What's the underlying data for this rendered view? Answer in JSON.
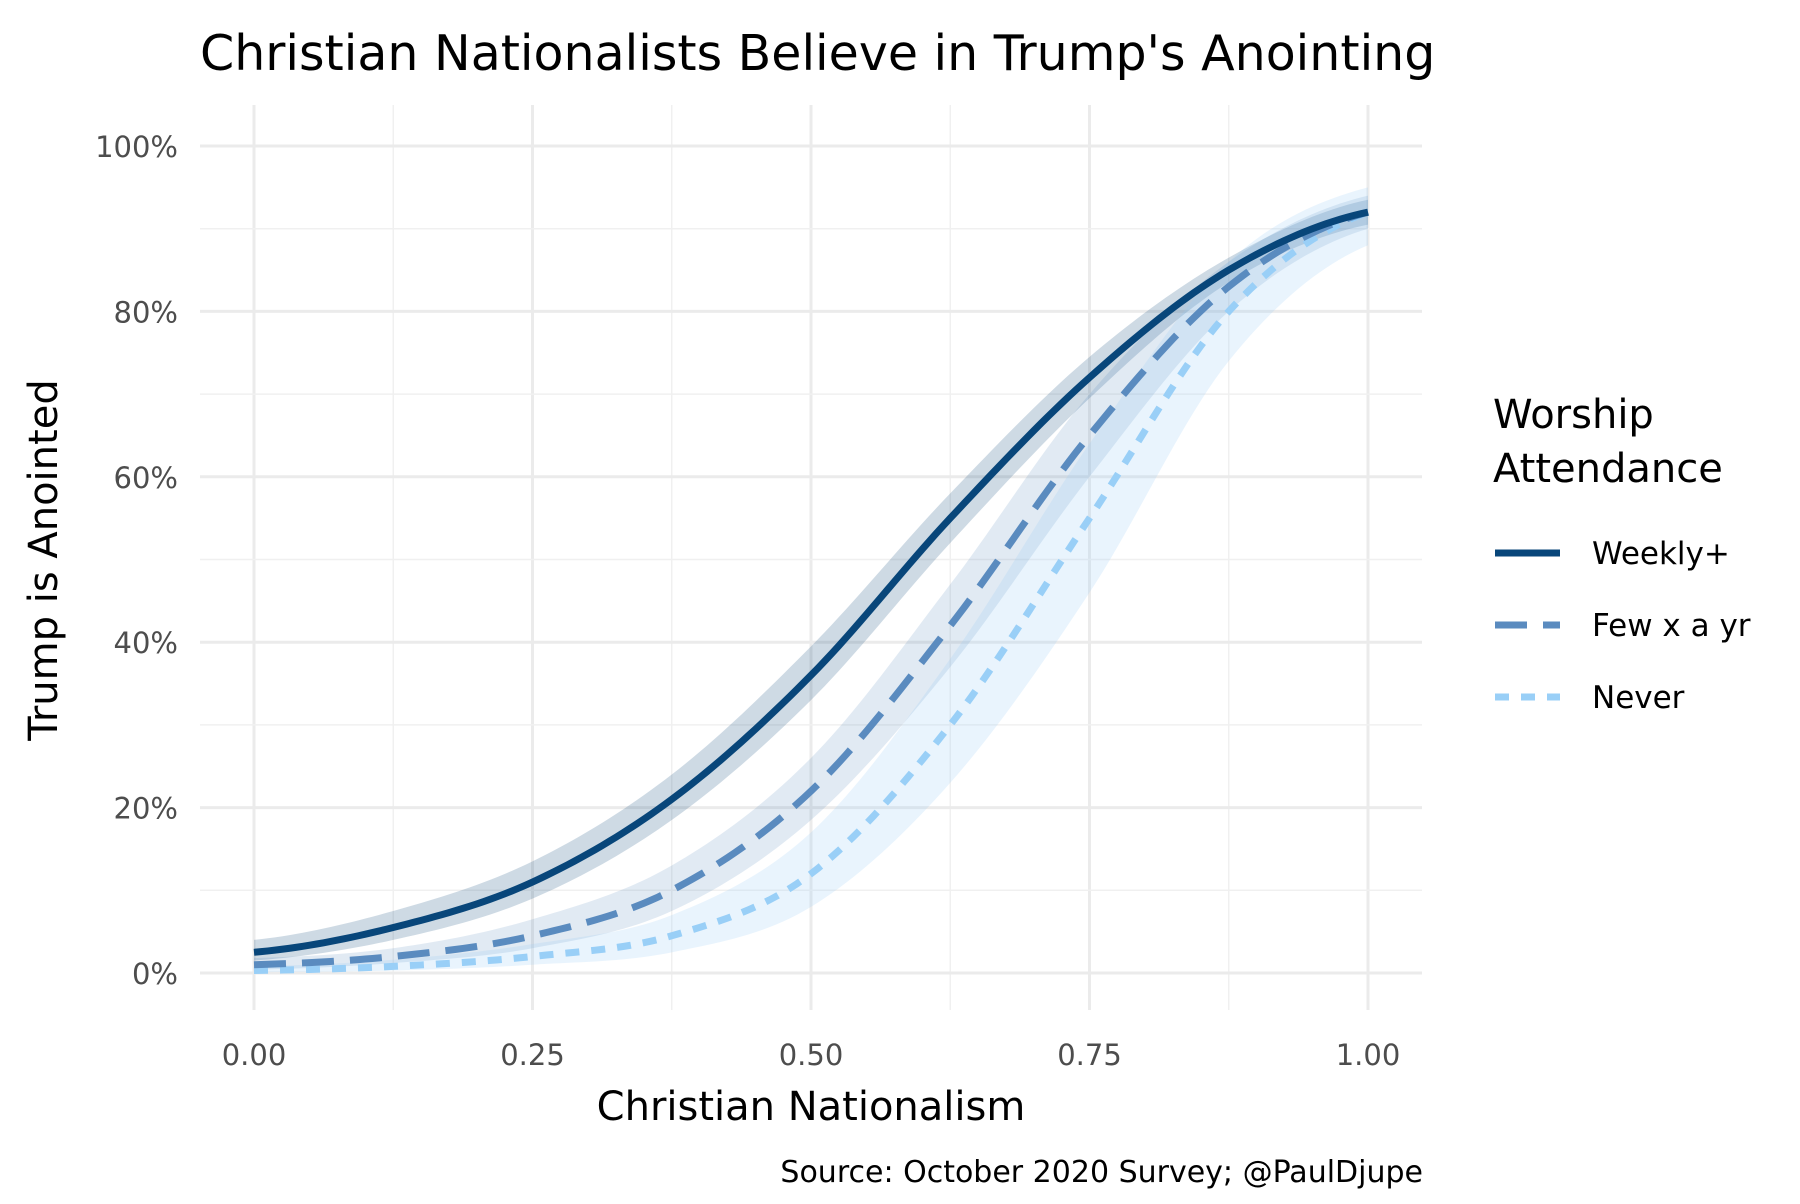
{
  "chart_data": {
    "type": "line",
    "title": "Christian Nationalists Believe in Trump's Anointing",
    "xlabel": "Christian Nationalism",
    "ylabel": "Trump is Anointed",
    "caption": "Source: October 2020 Survey; @PaulDjupe",
    "xlim": [
      0,
      1
    ],
    "ylim": [
      0,
      100
    ],
    "x_ticks": [
      0,
      0.25,
      0.5,
      0.75,
      1
    ],
    "x_tick_labels": [
      "0.00",
      "0.25",
      "0.50",
      "0.75",
      "1.00"
    ],
    "y_ticks": [
      0,
      20,
      40,
      60,
      80,
      100
    ],
    "y_tick_labels": [
      "0%",
      "20%",
      "40%",
      "60%",
      "80%",
      "100%"
    ],
    "grid": true,
    "legend": {
      "title_line1": "Worship",
      "title_line2": "Attendance",
      "placement": "right"
    },
    "x": [
      0,
      0.125,
      0.25,
      0.375,
      0.5,
      0.625,
      0.75,
      0.875,
      1
    ],
    "series": [
      {
        "name": "Weekly+",
        "color": "#08467a",
        "dash": "solid",
        "values": [
          2.5,
          5.5,
          11,
          21,
          36,
          55,
          72,
          85,
          92
        ],
        "lower": [
          1.5,
          4,
          9,
          18.5,
          33,
          52,
          69.5,
          83.5,
          90.5
        ],
        "upper": [
          4,
          7.5,
          13.5,
          24,
          39.5,
          58,
          74.5,
          86.5,
          93.5
        ]
      },
      {
        "name": "Few x a yr",
        "color": "#5a8bbf",
        "dash": "long",
        "values": [
          1,
          2,
          4.5,
          10,
          22,
          42,
          65,
          83,
          92
        ],
        "lower": [
          0.4,
          1.2,
          3,
          7.5,
          18.5,
          37,
          60,
          80,
          90
        ],
        "upper": [
          1.8,
          3,
          6.5,
          13,
          26,
          47,
          70,
          86,
          94
        ]
      },
      {
        "name": "Never",
        "color": "#99cff7",
        "dash": "short",
        "values": [
          0.3,
          0.8,
          2,
          4.5,
          12,
          30,
          55,
          80,
          92
        ],
        "lower": [
          0.1,
          0.3,
          1,
          2.5,
          8,
          23,
          46,
          74,
          88
        ],
        "upper": [
          0.8,
          1.6,
          3.5,
          7,
          17,
          38,
          64,
          86,
          95
        ]
      }
    ]
  }
}
